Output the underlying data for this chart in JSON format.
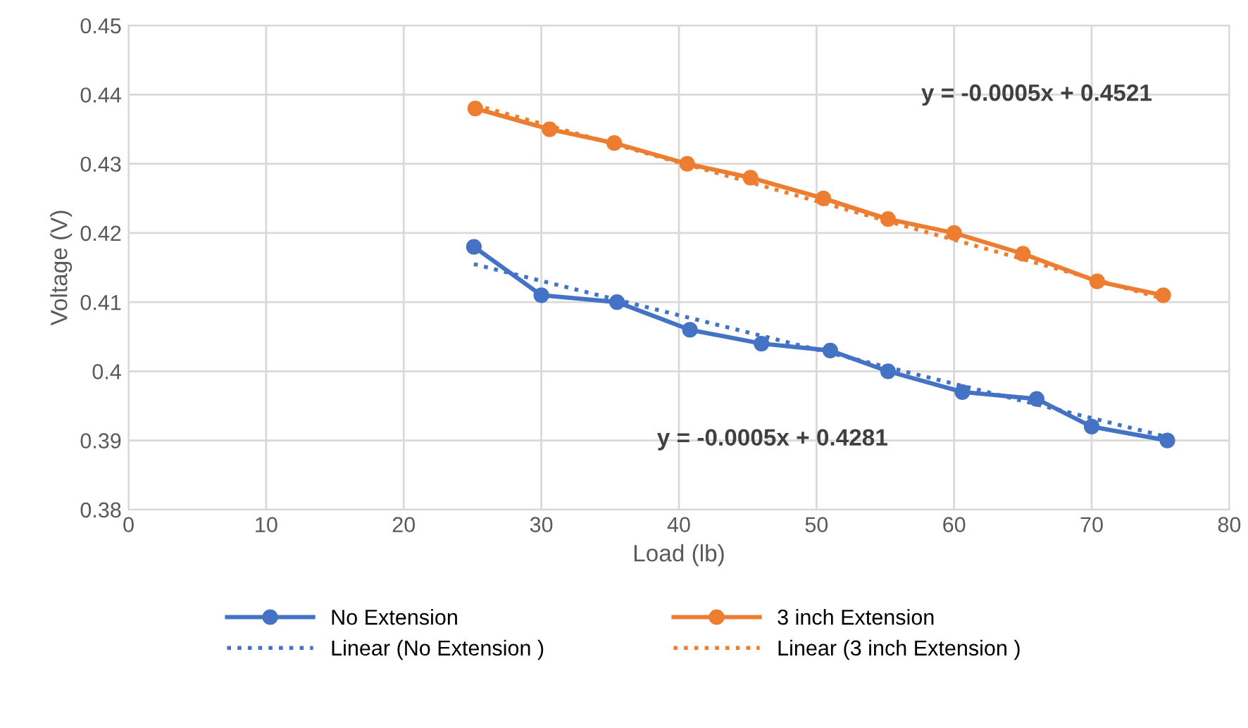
{
  "chart_data": {
    "type": "line",
    "xlabel": "Load (lb)",
    "ylabel": "Voltage (V)",
    "xlim": [
      0,
      80
    ],
    "xticks": [
      0,
      10,
      20,
      30,
      40,
      50,
      60,
      70,
      80
    ],
    "ylim": [
      0.38,
      0.45
    ],
    "yticks": [
      0.38,
      0.39,
      0.4,
      0.41,
      0.42,
      0.43,
      0.44,
      0.45
    ],
    "grid": true,
    "legend": "bottom",
    "series": [
      {
        "name": "No Extension",
        "color": "#4472c4",
        "marker": "circle",
        "line_style": "solid",
        "x": [
          25.1,
          30.0,
          35.5,
          40.8,
          46.0,
          51.0,
          55.2,
          60.6,
          66.0,
          70.0,
          75.5
        ],
        "values": [
          0.418,
          0.411,
          0.41,
          0.406,
          0.404,
          0.403,
          0.4,
          0.397,
          0.396,
          0.392,
          0.39
        ]
      },
      {
        "name": "3 inch Extension",
        "color": "#ed7d31",
        "marker": "circle",
        "line_style": "solid",
        "x": [
          25.2,
          30.6,
          35.3,
          40.6,
          45.2,
          50.5,
          55.2,
          60.0,
          65.0,
          70.4,
          75.2
        ],
        "values": [
          0.438,
          0.435,
          0.433,
          0.43,
          0.428,
          0.425,
          0.422,
          0.42,
          0.417,
          0.413,
          0.411
        ]
      },
      {
        "name": "Linear (No Extension )",
        "color": "#4472c4",
        "marker": "none",
        "line_style": "dotted",
        "x": [
          25.1,
          75.5
        ],
        "values": [
          0.4155,
          0.3905
        ]
      },
      {
        "name": "Linear (3 inch Extension )",
        "color": "#ed7d31",
        "marker": "none",
        "line_style": "dotted",
        "x": [
          25.2,
          75.2
        ],
        "values": [
          0.4385,
          0.4105
        ]
      }
    ],
    "annotations": [
      "y = -0.0005x + 0.4521",
      "y = -0.0005x + 0.4281"
    ]
  }
}
